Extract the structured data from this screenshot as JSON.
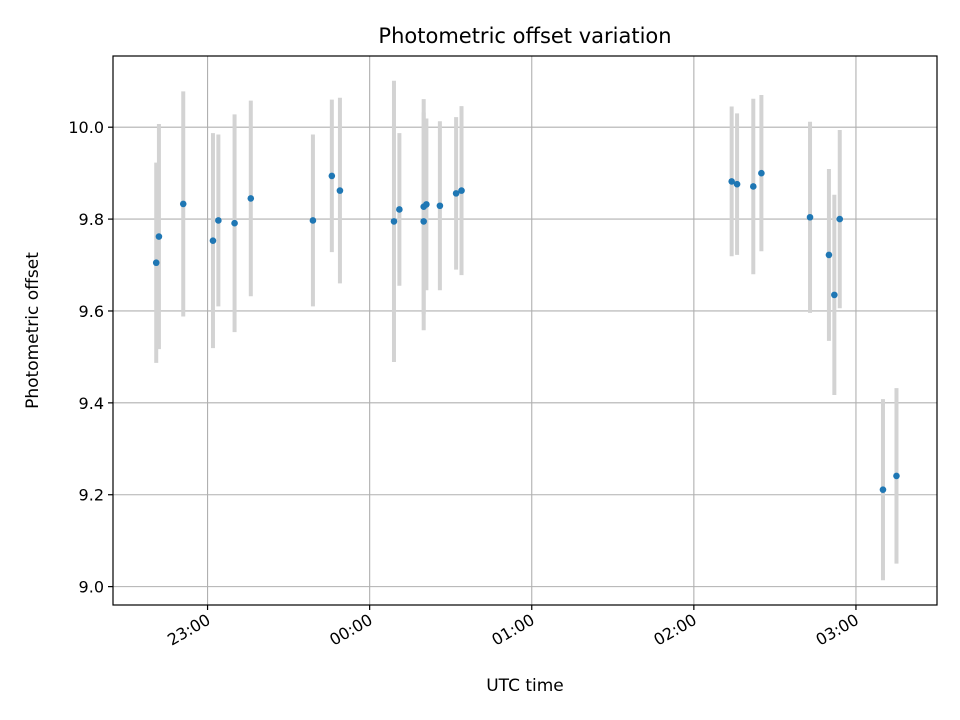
{
  "chart_data": {
    "type": "scatter",
    "title": "Photometric offset variation",
    "xlabel": "UTC time",
    "ylabel": "Photometric offset",
    "xlim": [
      "22:25",
      "03:30"
    ],
    "ylim": [
      8.96,
      10.155
    ],
    "x_ticks": [
      "23:00",
      "00:00",
      "01:00",
      "02:00",
      "03:00"
    ],
    "y_ticks": [
      9.0,
      9.2,
      9.4,
      9.6,
      9.8,
      10.0
    ],
    "grid": true,
    "legend": false,
    "colors": {
      "point": "#1f77b4",
      "errorbar": "#d3d3d3"
    },
    "points": [
      {
        "x": "22:41",
        "y": 9.705,
        "err": 0.218
      },
      {
        "x": "22:42",
        "y": 9.762,
        "err": 0.245
      },
      {
        "x": "22:51",
        "y": 9.833,
        "err": 0.245
      },
      {
        "x": "23:02",
        "y": 9.753,
        "err": 0.234
      },
      {
        "x": "23:04",
        "y": 9.797,
        "err": 0.187
      },
      {
        "x": "23:10",
        "y": 9.791,
        "err": 0.237
      },
      {
        "x": "23:16",
        "y": 9.845,
        "err": 0.213
      },
      {
        "x": "23:39",
        "y": 9.797,
        "err": 0.187
      },
      {
        "x": "23:46",
        "y": 9.894,
        "err": 0.166
      },
      {
        "x": "23:49",
        "y": 9.862,
        "err": 0.202
      },
      {
        "x": "00:09",
        "y": 9.795,
        "err": 0.306
      },
      {
        "x": "00:11",
        "y": 9.821,
        "err": 0.166
      },
      {
        "x": "00:20",
        "y": 9.827,
        "err": 0.234
      },
      {
        "x": "00:20",
        "y": 9.795,
        "err": 0.237
      },
      {
        "x": "00:21",
        "y": 9.832,
        "err": 0.187
      },
      {
        "x": "00:26",
        "y": 9.829,
        "err": 0.184
      },
      {
        "x": "00:32",
        "y": 9.856,
        "err": 0.166
      },
      {
        "x": "00:34",
        "y": 9.862,
        "err": 0.184
      },
      {
        "x": "02:14",
        "y": 9.882,
        "err": 0.163
      },
      {
        "x": "02:16",
        "y": 9.876,
        "err": 0.154
      },
      {
        "x": "02:22",
        "y": 9.871,
        "err": 0.191
      },
      {
        "x": "02:25",
        "y": 9.9,
        "err": 0.17
      },
      {
        "x": "02:43",
        "y": 9.804,
        "err": 0.208
      },
      {
        "x": "02:50",
        "y": 9.722,
        "err": 0.187
      },
      {
        "x": "02:52",
        "y": 9.635,
        "err": 0.218
      },
      {
        "x": "02:54",
        "y": 9.8,
        "err": 0.194
      },
      {
        "x": "03:10",
        "y": 9.211,
        "err": 0.197
      },
      {
        "x": "03:15",
        "y": 9.241,
        "err": 0.191
      }
    ]
  }
}
